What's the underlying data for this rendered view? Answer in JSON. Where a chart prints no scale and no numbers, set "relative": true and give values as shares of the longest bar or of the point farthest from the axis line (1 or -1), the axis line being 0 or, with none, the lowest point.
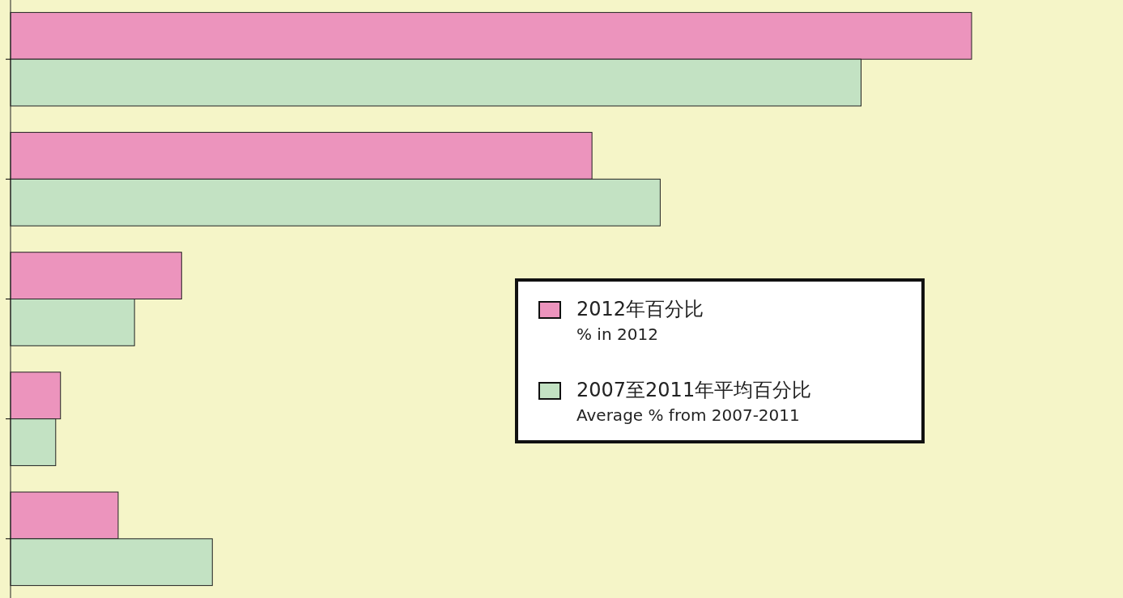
{
  "chart_data": {
    "type": "bar",
    "orientation": "horizontal",
    "relative": true,
    "categories": [
      null,
      null,
      null,
      null,
      null
    ],
    "series": [
      {
        "name": "2012年百分比\n% in 2012",
        "color": "#ec94bd",
        "values": [
          1,
          0.605,
          0.178,
          0.052,
          0.112
        ]
      },
      {
        "name": "2007至2011年平均百分比\nAverage % from 2007-2011",
        "color": "#c3e2c3",
        "values": [
          0.885,
          0.676,
          0.129,
          0.047,
          0.21
        ]
      }
    ],
    "legend": "right"
  }
}
